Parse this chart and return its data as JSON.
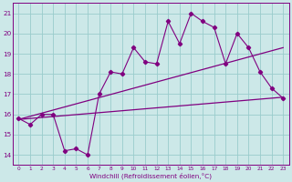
{
  "zigzag_x": [
    0,
    1,
    2,
    3,
    4,
    5,
    6,
    7,
    8,
    9,
    10,
    11,
    12,
    13,
    14,
    15,
    16,
    17,
    18,
    19,
    20,
    21,
    22,
    23
  ],
  "zigzag_y": [
    15.8,
    15.5,
    16.0,
    16.0,
    14.2,
    14.3,
    14.0,
    17.0,
    18.1,
    18.0,
    19.3,
    18.6,
    18.5,
    20.6,
    19.5,
    21.0,
    20.6,
    20.3,
    18.5,
    20.0,
    19.3,
    18.1,
    17.3,
    16.8
  ],
  "color": "#800080",
  "bg_color": "#cce8e8",
  "grid_color": "#99cccc",
  "xlabel": "Windchill (Refroidissement éolien,°C)",
  "ylim": [
    13.5,
    21.5
  ],
  "xlim": [
    -0.5,
    23.5
  ],
  "yticks": [
    14,
    15,
    16,
    17,
    18,
    19,
    20,
    21
  ],
  "xticks": [
    0,
    1,
    2,
    3,
    4,
    5,
    6,
    7,
    8,
    9,
    10,
    11,
    12,
    13,
    14,
    15,
    16,
    17,
    18,
    19,
    20,
    21,
    22,
    23
  ],
  "linear_x0": 0,
  "linear_x1": 23,
  "linear_y0": 15.75,
  "linear_y1": 16.85,
  "smooth_x0": 0,
  "smooth_x1": 23,
  "smooth_y0": 15.75,
  "smooth_y1": 19.3
}
